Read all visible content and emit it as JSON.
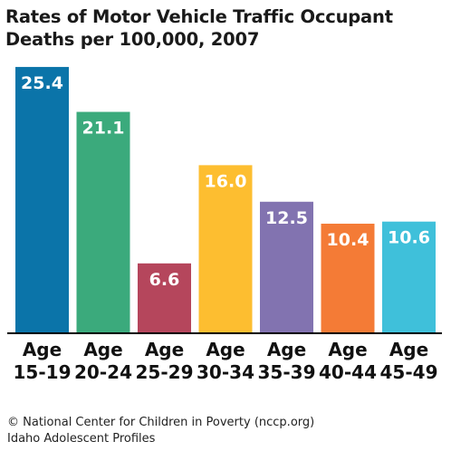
{
  "chart_data": {
    "type": "bar",
    "title_line1": "Rates of Motor Vehicle Traffic Occupant",
    "title_line2": "Deaths per 100,000, 2007",
    "categories": [
      [
        "Age",
        "15-19"
      ],
      [
        "Age",
        "20-24"
      ],
      [
        "Age",
        "25-29"
      ],
      [
        "Age",
        "30-34"
      ],
      [
        "Age",
        "35-39"
      ],
      [
        "Age",
        "40-44"
      ],
      [
        "Age",
        "45-49"
      ]
    ],
    "values": [
      25.4,
      21.1,
      6.6,
      16.0,
      12.5,
      10.4,
      10.6
    ],
    "value_labels": [
      "25.4",
      "21.1",
      "6.6",
      "16.0",
      "12.5",
      "10.4",
      "10.6"
    ],
    "colors": [
      "#0B74A9",
      "#3BAA7C",
      "#B5465C",
      "#FDBE30",
      "#8273B0",
      "#F47B36",
      "#3FC0DA"
    ],
    "ylim": [
      0,
      26
    ],
    "grid": false,
    "legend": "none"
  },
  "footer": {
    "line1": "© National Center for Children in Poverty (nccp.org)",
    "line2": "Idaho Adolescent Profiles"
  }
}
